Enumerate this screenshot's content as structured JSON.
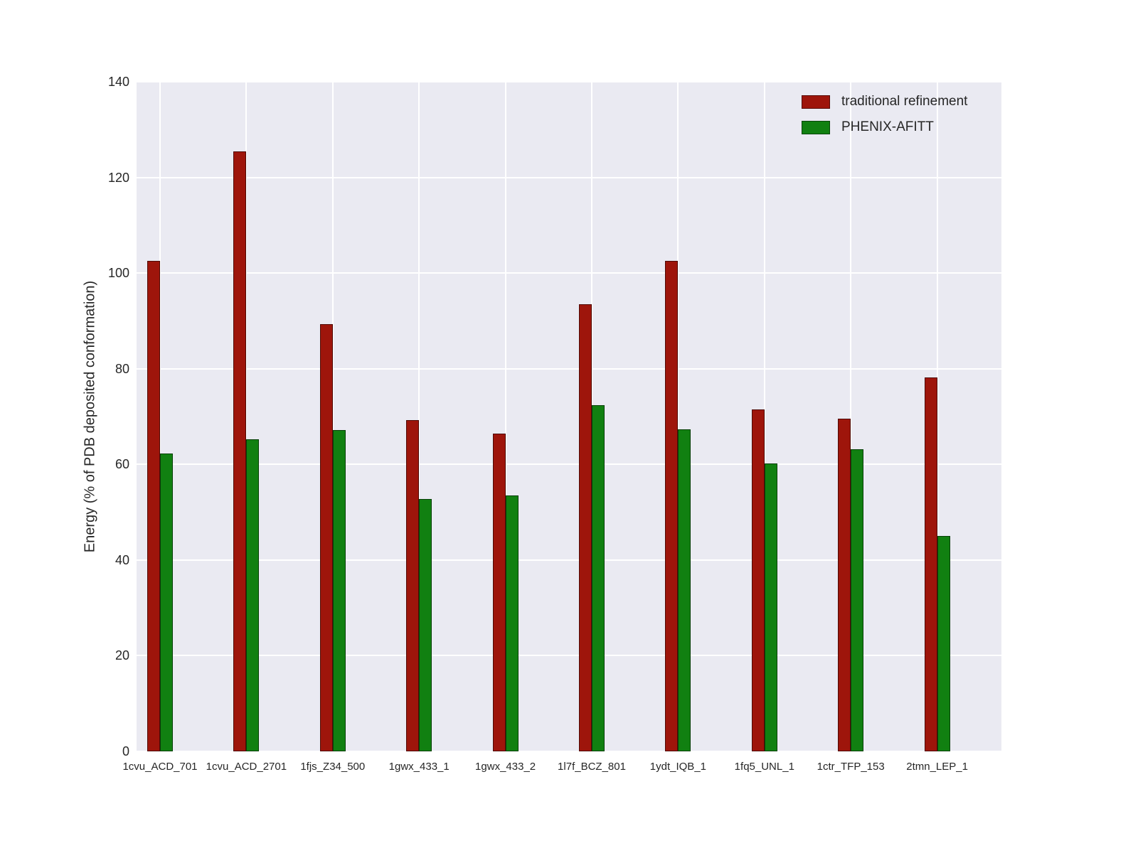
{
  "chart_data": {
    "type": "bar",
    "categories": [
      "1cvu_ACD_701",
      "1cvu_ACD_2701",
      "1fjs_Z34_500",
      "1gwx_433_1",
      "1gwx_433_2",
      "1l7f_BCZ_801",
      "1ydt_IQB_1",
      "1fq5_UNL_1",
      "1ctr_TFP_153",
      "2tmn_LEP_1"
    ],
    "series": [
      {
        "name": "traditional refinement",
        "color": "#9e150b",
        "values": [
          102.5,
          125.5,
          89.3,
          69.3,
          66.5,
          93.5,
          102.5,
          71.5,
          69.5,
          78.2
        ]
      },
      {
        "name": "PHENIX-AFITT",
        "color": "#118011",
        "values": [
          62.3,
          65.2,
          67.2,
          52.8,
          53.5,
          72.4,
          67.3,
          60.2,
          63.1,
          45.0
        ]
      }
    ],
    "title": "",
    "xlabel": "",
    "ylabel": "Energy (% of PDB deposited conformation)",
    "ylim": [
      0,
      140
    ],
    "yticks": [
      0,
      20,
      40,
      60,
      80,
      100,
      120,
      140
    ],
    "legend_position": "upper right",
    "grid": true,
    "plot_background": "#eaeaf2",
    "grid_color": "#ffffff"
  }
}
